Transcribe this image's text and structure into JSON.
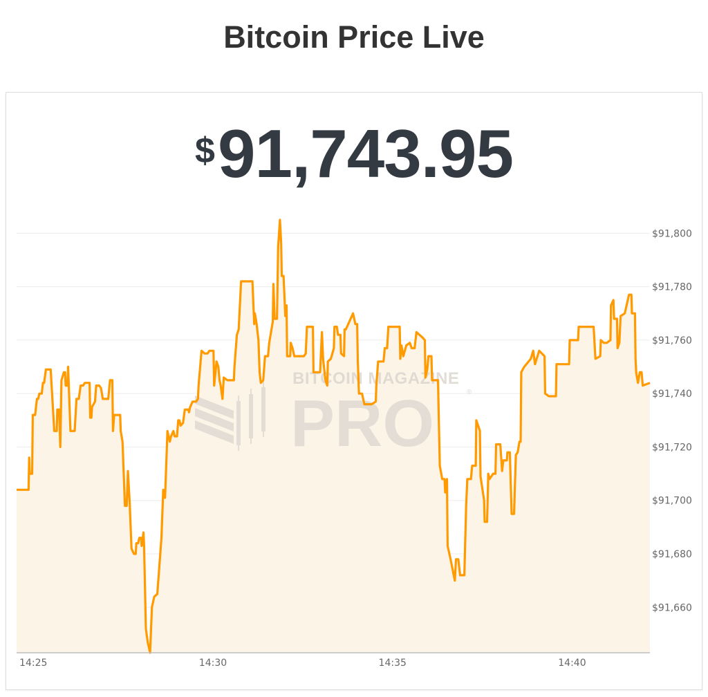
{
  "header": {
    "title": "Bitcoin Price Live"
  },
  "price": {
    "currency_symbol": "$",
    "value": "91,743.95"
  },
  "watermark": {
    "line1": "BITCOIN MAGAZINE",
    "line2": "PRO",
    "mark": "®"
  },
  "colors": {
    "line": "#ff9a00",
    "fill": "#fdf4e8",
    "grid": "#ececec",
    "axis": "#bdbdbd",
    "text": "#333a42"
  },
  "chart_data": {
    "type": "area",
    "title": "",
    "xlabel": "",
    "ylabel": "",
    "xlim": [
      "14:24:32",
      "14:42:10"
    ],
    "ylim": [
      91643,
      91805
    ],
    "grid": true,
    "legend": "none",
    "y_axis_side": "right",
    "x_ticks": [
      "14:25",
      "14:30",
      "14:35",
      "14:40"
    ],
    "y_ticks": [
      91660,
      91680,
      91700,
      91720,
      91740,
      91760,
      91780,
      91800
    ],
    "y_tick_labels": [
      "$91,660",
      "$91,680",
      "$91,700",
      "$91,720",
      "$91,740",
      "$91,760",
      "$91,780",
      "$91,800"
    ],
    "series": [
      {
        "points": [
          [
            "14:24:32",
            91704
          ],
          [
            "14:24:52",
            91704
          ],
          [
            "14:24:53",
            91716
          ],
          [
            "14:24:54",
            91710
          ],
          [
            "14:24:58",
            91710
          ],
          [
            "14:24:59",
            91732
          ],
          [
            "14:25:03",
            91732
          ],
          [
            "14:25:06",
            91738
          ],
          [
            "14:25:08",
            91738
          ],
          [
            "14:25:10",
            91740
          ],
          [
            "14:25:14",
            91740
          ],
          [
            "14:25:16",
            91744
          ],
          [
            "14:25:18",
            91744
          ],
          [
            "14:25:21",
            91749
          ],
          [
            "14:25:29",
            91749
          ],
          [
            "14:25:35",
            91726
          ],
          [
            "14:25:39",
            91726
          ],
          [
            "14:25:40",
            91734
          ],
          [
            "14:25:43",
            91734
          ],
          [
            "14:25:45",
            91720
          ],
          [
            "14:25:47",
            91745
          ],
          [
            "14:25:51",
            91748
          ],
          [
            "14:25:53",
            91748
          ],
          [
            "14:25:54",
            91743
          ],
          [
            "14:25:57",
            91743
          ],
          [
            "14:25:58",
            91750
          ],
          [
            "14:26:02",
            91726
          ],
          [
            "14:26:09",
            91726
          ],
          [
            "14:26:12",
            91738
          ],
          [
            "14:26:16",
            91738
          ],
          [
            "14:26:19",
            91743
          ],
          [
            "14:26:23",
            91743
          ],
          [
            "14:26:26",
            91744
          ],
          [
            "14:26:34",
            91744
          ],
          [
            "14:26:35",
            91731
          ],
          [
            "14:26:37",
            91731
          ],
          [
            "14:26:38",
            91735
          ],
          [
            "14:26:43",
            91737
          ],
          [
            "14:26:45",
            91743
          ],
          [
            "14:26:50",
            91743
          ],
          [
            "14:26:53",
            91742
          ],
          [
            "14:26:56",
            91738
          ],
          [
            "14:27:05",
            91738
          ],
          [
            "14:27:06",
            91740
          ],
          [
            "14:27:08",
            91745
          ],
          [
            "14:27:12",
            91745
          ],
          [
            "14:27:13",
            91726
          ],
          [
            "14:27:15",
            91732
          ],
          [
            "14:27:25",
            91732
          ],
          [
            "14:27:26",
            91726
          ],
          [
            "14:27:29",
            91722
          ],
          [
            "14:27:33",
            91698
          ],
          [
            "14:27:36",
            91698
          ],
          [
            "14:27:38",
            91711
          ],
          [
            "14:27:41",
            91699
          ],
          [
            "14:27:44",
            91682
          ],
          [
            "14:27:48",
            91680
          ],
          [
            "14:27:51",
            91680
          ],
          [
            "14:27:52",
            91684
          ],
          [
            "14:27:55",
            91684
          ],
          [
            "14:27:57",
            91686
          ],
          [
            "14:28:00",
            91686
          ],
          [
            "14:28:01",
            91683
          ],
          [
            "14:28:04",
            91688
          ],
          [
            "14:28:05",
            91683
          ],
          [
            "14:28:08",
            91652
          ],
          [
            "14:28:11",
            91647
          ],
          [
            "14:28:15",
            91643
          ],
          [
            "14:28:18",
            91660
          ],
          [
            "14:28:22",
            91664
          ],
          [
            "14:28:27",
            91665
          ],
          [
            "14:28:32",
            91680
          ],
          [
            "14:28:34",
            91686
          ],
          [
            "14:28:37",
            91704
          ],
          [
            "14:28:40",
            91701
          ],
          [
            "14:28:44",
            91726
          ],
          [
            "14:28:48",
            91722
          ],
          [
            "14:28:50",
            91724
          ],
          [
            "14:28:54",
            91726
          ],
          [
            "14:28:56",
            91724
          ],
          [
            "14:29:00",
            91724
          ],
          [
            "14:29:02",
            91730
          ],
          [
            "14:29:04",
            91730
          ],
          [
            "14:29:06",
            91728
          ],
          [
            "14:29:10",
            91729
          ],
          [
            "14:29:13",
            91734
          ],
          [
            "14:29:19",
            91734
          ],
          [
            "14:29:20",
            91733
          ],
          [
            "14:29:22",
            91735
          ],
          [
            "14:29:26",
            91737
          ],
          [
            "14:29:32",
            91737
          ],
          [
            "14:29:35",
            91738
          ],
          [
            "14:29:36",
            91743
          ],
          [
            "14:29:41",
            91756
          ],
          [
            "14:29:46",
            91755
          ],
          [
            "14:29:51",
            91755
          ],
          [
            "14:29:54",
            91756
          ],
          [
            "14:30:01",
            91756
          ],
          [
            "14:30:02",
            91743
          ],
          [
            "14:30:06",
            91752
          ],
          [
            "14:30:09",
            91750
          ],
          [
            "14:30:11",
            91745
          ],
          [
            "14:30:13",
            91743
          ],
          [
            "14:30:16",
            91738
          ],
          [
            "14:30:18",
            91746
          ],
          [
            "14:30:24",
            91745
          ],
          [
            "14:30:30",
            91745
          ],
          [
            "14:30:35",
            91745
          ],
          [
            "14:30:36",
            91750
          ],
          [
            "14:30:40",
            91762
          ],
          [
            "14:30:43",
            91764
          ],
          [
            "14:30:47",
            91782
          ],
          [
            "14:31:06",
            91782
          ],
          [
            "14:31:09",
            91766
          ],
          [
            "14:31:10",
            91770
          ],
          [
            "14:31:13",
            91766
          ],
          [
            "14:31:16",
            91760
          ],
          [
            "14:31:18",
            91748
          ],
          [
            "14:31:20",
            91744
          ],
          [
            "14:31:24",
            91745
          ],
          [
            "14:31:27",
            91754
          ],
          [
            "14:31:32",
            91754
          ],
          [
            "14:31:34",
            91759
          ],
          [
            "14:31:40",
            91767
          ],
          [
            "14:31:41",
            91781
          ],
          [
            "14:31:43",
            91768
          ],
          [
            "14:31:47",
            91768
          ],
          [
            "14:31:49",
            91795
          ],
          [
            "14:31:52",
            91805
          ],
          [
            "14:31:54",
            91796
          ],
          [
            "14:31:55",
            91784
          ],
          [
            "14:31:58",
            91784
          ],
          [
            "14:32:01",
            91769
          ],
          [
            "14:32:03",
            91773
          ],
          [
            "14:32:04",
            91754
          ],
          [
            "14:32:09",
            91754
          ],
          [
            "14:32:10",
            91759
          ],
          [
            "14:32:13",
            91757
          ],
          [
            "14:32:16",
            91754
          ],
          [
            "14:32:20",
            91754
          ],
          [
            "14:32:24",
            91754
          ],
          [
            "14:32:32",
            91754
          ],
          [
            "14:32:35",
            91755
          ],
          [
            "14:32:37",
            91765
          ],
          [
            "14:32:47",
            91765
          ],
          [
            "14:32:48",
            91748
          ],
          [
            "14:32:59",
            91748
          ],
          [
            "14:33:02",
            91763
          ],
          [
            "14:33:04",
            91753
          ],
          [
            "14:33:08",
            91745
          ],
          [
            "14:33:11",
            91743
          ],
          [
            "14:33:12",
            91752
          ],
          [
            "14:33:17",
            91753
          ],
          [
            "14:33:22",
            91757
          ],
          [
            "14:33:23",
            91765
          ],
          [
            "14:33:27",
            91765
          ],
          [
            "14:33:29",
            91762
          ],
          [
            "14:33:33",
            91762
          ],
          [
            "14:33:34",
            91755
          ],
          [
            "14:33:39",
            91754
          ],
          [
            "14:33:40",
            91764
          ],
          [
            "14:33:42",
            91764
          ],
          [
            "14:33:54",
            91770
          ],
          [
            "14:33:58",
            91766
          ],
          [
            "14:34:01",
            91766
          ],
          [
            "14:34:02",
            91752
          ],
          [
            "14:34:04",
            91740
          ],
          [
            "14:34:09",
            91740
          ],
          [
            "14:34:13",
            91736
          ],
          [
            "14:34:25",
            91736
          ],
          [
            "14:34:32",
            91737
          ],
          [
            "14:34:33",
            91743
          ],
          [
            "14:34:36",
            91752
          ],
          [
            "14:34:45",
            91752
          ],
          [
            "14:34:47",
            91757
          ],
          [
            "14:34:51",
            91757
          ],
          [
            "14:34:53",
            91765
          ],
          [
            "14:35:07",
            91765
          ],
          [
            "14:35:12",
            91765
          ],
          [
            "14:35:13",
            91753
          ],
          [
            "14:35:15",
            91758
          ],
          [
            "14:35:18",
            91754
          ],
          [
            "14:35:23",
            91758
          ],
          [
            "14:35:29",
            91759
          ],
          [
            "14:35:32",
            91757
          ],
          [
            "14:35:37",
            91757
          ],
          [
            "14:35:40",
            91763
          ],
          [
            "14:35:45",
            91762
          ],
          [
            "14:35:50",
            91761
          ],
          [
            "14:35:54",
            91760
          ],
          [
            "14:35:55",
            91746
          ],
          [
            "14:35:58",
            91749
          ],
          [
            "14:36:00",
            91754
          ],
          [
            "14:36:05",
            91754
          ],
          [
            "14:36:06",
            91745
          ],
          [
            "14:36:16",
            91745
          ],
          [
            "14:36:19",
            91713
          ],
          [
            "14:36:23",
            91708
          ],
          [
            "14:36:27",
            91708
          ],
          [
            "14:36:28",
            91703
          ],
          [
            "14:36:31",
            91708
          ],
          [
            "14:36:32",
            91683
          ],
          [
            "14:36:37",
            91678
          ],
          [
            "14:36:44",
            91670
          ],
          [
            "14:36:46",
            91678
          ],
          [
            "14:36:50",
            91678
          ],
          [
            "14:36:53",
            91672
          ],
          [
            "14:37:00",
            91672
          ],
          [
            "14:37:03",
            91698
          ],
          [
            "14:37:05",
            91708
          ],
          [
            "14:37:11",
            91708
          ],
          [
            "14:37:13",
            91713
          ],
          [
            "14:37:19",
            91713
          ],
          [
            "14:37:20",
            91730
          ],
          [
            "14:37:26",
            91726
          ],
          [
            "14:37:27",
            91709
          ],
          [
            "14:37:33",
            91700
          ],
          [
            "14:37:34",
            91692
          ],
          [
            "14:37:38",
            91692
          ],
          [
            "14:37:40",
            91710
          ],
          [
            "14:37:42",
            91708
          ],
          [
            "14:37:48",
            91710
          ],
          [
            "14:37:52",
            91710
          ],
          [
            "14:37:53",
            91721
          ],
          [
            "14:38:00",
            91721
          ],
          [
            "14:38:03",
            91711
          ],
          [
            "14:38:05",
            91715
          ],
          [
            "14:38:11",
            91715
          ],
          [
            "14:38:12",
            91718
          ],
          [
            "14:38:16",
            91718
          ],
          [
            "14:38:19",
            91695
          ],
          [
            "14:38:23",
            91695
          ],
          [
            "14:38:26",
            91717
          ],
          [
            "14:38:29",
            91718
          ],
          [
            "14:38:32",
            91722
          ],
          [
            "14:38:34",
            91722
          ],
          [
            "14:38:35",
            91748
          ],
          [
            "14:38:40",
            91750
          ],
          [
            "14:38:51",
            91753
          ],
          [
            "14:38:55",
            91756
          ],
          [
            "14:38:58",
            91751
          ],
          [
            "14:39:05",
            91756
          ],
          [
            "14:39:14",
            91754
          ],
          [
            "14:39:15",
            91740
          ],
          [
            "14:39:21",
            91739
          ],
          [
            "14:39:33",
            91739
          ],
          [
            "14:39:34",
            91751
          ],
          [
            "14:39:41",
            91751
          ],
          [
            "14:39:55",
            91751
          ],
          [
            "14:39:56",
            91760
          ],
          [
            "14:40:10",
            91760
          ],
          [
            "14:40:11",
            91765
          ],
          [
            "14:40:24",
            91765
          ],
          [
            "14:40:36",
            91765
          ],
          [
            "14:40:39",
            91753
          ],
          [
            "14:40:47",
            91754
          ],
          [
            "14:40:48",
            91760
          ],
          [
            "14:40:53",
            91759
          ],
          [
            "14:40:58",
            91759
          ],
          [
            "14:41:04",
            91760
          ],
          [
            "14:41:05",
            91773
          ],
          [
            "14:41:09",
            91775
          ],
          [
            "14:41:10",
            91768
          ],
          [
            "14:41:15",
            91768
          ],
          [
            "14:41:16",
            91757
          ],
          [
            "14:41:19",
            91759
          ],
          [
            "14:41:21",
            91769
          ],
          [
            "14:41:28",
            91770
          ],
          [
            "14:41:32",
            91774
          ],
          [
            "14:41:35",
            91777
          ],
          [
            "14:41:39",
            91777
          ],
          [
            "14:41:40",
            91770
          ],
          [
            "14:41:45",
            91770
          ],
          [
            "14:41:46",
            91753
          ],
          [
            "14:41:47",
            91748
          ],
          [
            "14:41:50",
            91744
          ],
          [
            "14:41:53",
            91748
          ],
          [
            "14:41:56",
            91748
          ],
          [
            "14:41:58",
            91743
          ],
          [
            "14:42:10",
            91744
          ]
        ]
      }
    ]
  }
}
